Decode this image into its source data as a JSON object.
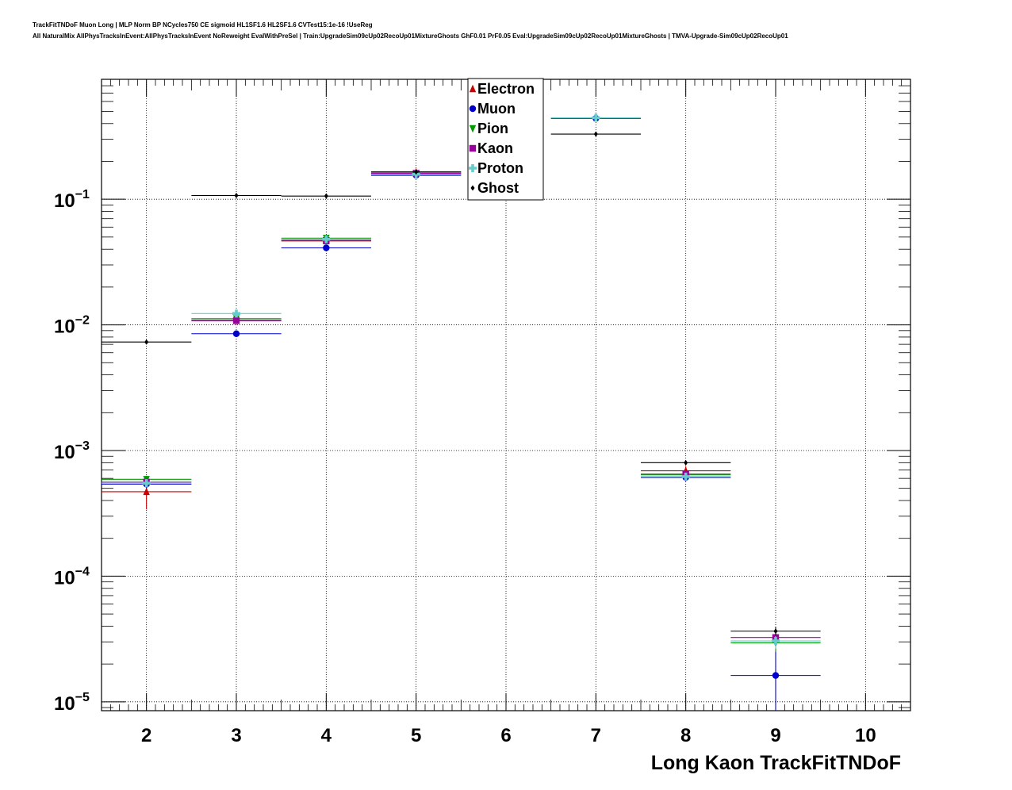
{
  "title": {
    "line1": "TrackFitTNDoF Muon Long | MLP Norm BP NCycles750 CE sigmoid HL1SF1.6 HL2SF1.6 CVTest15:1e-16 !UseReg",
    "line2": "All NaturalMix AllPhysTracksInEvent:AllPhysTracksInEvent NoReweight EvalWithPreSel | Train:UpgradeSim09cUp02RecoUp01MixtureGhosts GhF0.01 PrF0.05 Eval:UpgradeSim09cUp02RecoUp01MixtureGhosts | TMVA-Upgrade-Sim09cUp02RecoUp01"
  },
  "chart_data": {
    "type": "scatter",
    "xlabel": "Long Kaon TrackFitTNDoF",
    "ylabel": "",
    "xlim": [
      1.5,
      10.5
    ],
    "ylim": [
      8.5e-06,
      0.9
    ],
    "yscale": "log",
    "grid": true,
    "legend_position": "top-center",
    "x_ticks": [
      "2",
      "3",
      "4",
      "5",
      "6",
      "7",
      "8",
      "9",
      "10"
    ],
    "y_ticks": [
      {
        "value": 1e-05,
        "base": "10",
        "exp": "−5"
      },
      {
        "value": 0.0001,
        "base": "10",
        "exp": "−4"
      },
      {
        "value": 0.001,
        "base": "10",
        "exp": "−3"
      },
      {
        "value": 0.01,
        "base": "10",
        "exp": "−2"
      },
      {
        "value": 0.1,
        "base": "10",
        "exp": "−1"
      }
    ],
    "series": [
      {
        "name": "Electron",
        "color": "#cc0000",
        "marker": "triangle-up",
        "points": [
          {
            "x": 2,
            "y": 0.00047,
            "err": 0.00013
          },
          {
            "x": 3,
            "y": 0.0109,
            "err": 0.0004
          },
          {
            "x": 4,
            "y": 0.0465,
            "err": 0.001
          },
          {
            "x": 5,
            "y": 0.164,
            "err": 0.002
          },
          {
            "x": 8,
            "y": 0.00069,
            "err": 6e-05
          }
        ]
      },
      {
        "name": "Muon",
        "color": "#0000cc",
        "marker": "circle",
        "points": [
          {
            "x": 2,
            "y": 0.00054,
            "err": 4e-05
          },
          {
            "x": 3,
            "y": 0.0085,
            "err": 0.0002
          },
          {
            "x": 4,
            "y": 0.041,
            "err": 0.0006
          },
          {
            "x": 5,
            "y": 0.155,
            "err": 0.001
          },
          {
            "x": 7,
            "y": 0.44,
            "err": 0.003
          },
          {
            "x": 8,
            "y": 0.00061,
            "err": 4e-05
          },
          {
            "x": 9,
            "y": 1.62e-05,
            "err": 9e-06
          }
        ]
      },
      {
        "name": "Pion",
        "color": "#009900",
        "marker": "triangle-down",
        "points": [
          {
            "x": 2,
            "y": 0.00059,
            "err": 4e-05
          },
          {
            "x": 3,
            "y": 0.0112,
            "err": 0.0003
          },
          {
            "x": 4,
            "y": 0.049,
            "err": 0.0008
          },
          {
            "x": 5,
            "y": 0.16,
            "err": 0.001
          },
          {
            "x": 8,
            "y": 0.00064,
            "err": 4e-05
          },
          {
            "x": 9,
            "y": 2.95e-05,
            "err": 4e-06
          }
        ]
      },
      {
        "name": "Kaon",
        "color": "#990099",
        "marker": "square",
        "points": [
          {
            "x": 2,
            "y": 0.00056,
            "err": 3e-05
          },
          {
            "x": 3,
            "y": 0.0108,
            "err": 0.0002
          },
          {
            "x": 4,
            "y": 0.047,
            "err": 0.0006
          },
          {
            "x": 5,
            "y": 0.161,
            "err": 0.001
          },
          {
            "x": 8,
            "y": 0.00065,
            "err": 3e-05
          },
          {
            "x": 9,
            "y": 3.25e-05,
            "err": 4e-06
          }
        ]
      },
      {
        "name": "Proton",
        "color": "#66cccc",
        "marker": "cross",
        "points": [
          {
            "x": 2,
            "y": 0.00055,
            "err": 4e-05
          },
          {
            "x": 3,
            "y": 0.0123,
            "err": 0.0003
          },
          {
            "x": 4,
            "y": 0.048,
            "err": 0.0008
          },
          {
            "x": 5,
            "y": 0.158,
            "err": 0.001
          },
          {
            "x": 7,
            "y": 0.445,
            "err": 0.003
          },
          {
            "x": 8,
            "y": 0.00062,
            "err": 4e-05
          },
          {
            "x": 9,
            "y": 3.05e-05,
            "err": 4e-06
          }
        ]
      },
      {
        "name": "Ghost",
        "color": "#000000",
        "marker": "diamond",
        "points": [
          {
            "x": 2,
            "y": 0.0073,
            "err": 0.0002
          },
          {
            "x": 3,
            "y": 0.107,
            "err": 0.001
          },
          {
            "x": 4,
            "y": 0.106,
            "err": 0.001
          },
          {
            "x": 5,
            "y": 0.165,
            "err": 0.001
          },
          {
            "x": 7,
            "y": 0.33,
            "err": 0.002
          },
          {
            "x": 8,
            "y": 0.0008,
            "err": 3e-05
          },
          {
            "x": 9,
            "y": 3.65e-05,
            "err": 3e-06
          }
        ]
      }
    ]
  }
}
